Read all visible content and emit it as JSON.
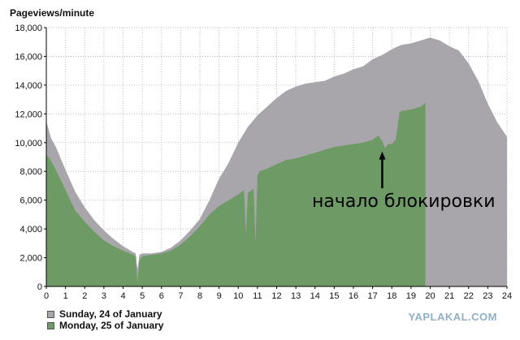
{
  "chart_data": {
    "type": "area",
    "ylabel": "Pageviews/minute",
    "xlim": [
      0,
      24
    ],
    "ylim": [
      0,
      18000
    ],
    "x_ticks": [
      "0",
      "1",
      "2",
      "3",
      "4",
      "5",
      "6",
      "7",
      "8",
      "9",
      "10",
      "11",
      "12",
      "13",
      "14",
      "15",
      "16",
      "17",
      "18",
      "19",
      "20",
      "21",
      "22",
      "23",
      "24"
    ],
    "y_ticks": [
      "0",
      "2,000",
      "4,000",
      "6,000",
      "8,000",
      "10,000",
      "12,000",
      "14,000",
      "16,000",
      "18,000"
    ],
    "grid": true,
    "legend_position": "bottom-left",
    "series": [
      {
        "name": "Sunday, 24 of January",
        "color": "#a8a5ab",
        "x": [
          0,
          0.25,
          0.5,
          1,
          1.5,
          2,
          2.5,
          3,
          3.5,
          4,
          4.5,
          4.65,
          4.75,
          4.85,
          5,
          5.5,
          6,
          6.5,
          7,
          7.5,
          8,
          8.5,
          9,
          9.5,
          10,
          10.5,
          11,
          11.5,
          12,
          12.5,
          13,
          13.5,
          14,
          14.5,
          15,
          15.5,
          16,
          16.5,
          17,
          17.5,
          18,
          18.5,
          19,
          19.5,
          20,
          20.5,
          21,
          21.5,
          22,
          22.5,
          23,
          23.5,
          24
        ],
        "values": [
          11500,
          10300,
          9700,
          8100,
          6600,
          5500,
          4600,
          3900,
          3300,
          2800,
          2400,
          2300,
          1200,
          2200,
          2300,
          2300,
          2400,
          2700,
          3200,
          3900,
          4700,
          6000,
          7500,
          8600,
          10000,
          11100,
          11900,
          12500,
          13100,
          13600,
          13900,
          14100,
          14200,
          14300,
          14600,
          14800,
          15100,
          15300,
          15800,
          16100,
          16500,
          16800,
          16900,
          17100,
          17300,
          17100,
          16700,
          16400,
          15500,
          14300,
          12700,
          11400,
          10400
        ]
      },
      {
        "name": "Monday, 25 of January",
        "color": "#6e9a66",
        "x": [
          0,
          0.25,
          0.5,
          1,
          1.5,
          2,
          2.5,
          3,
          3.5,
          4,
          4.5,
          4.65,
          4.75,
          4.85,
          5,
          5.5,
          6,
          6.5,
          7,
          7.5,
          8,
          8.5,
          9,
          9.5,
          10,
          10.2,
          10.3,
          10.4,
          10.5,
          10.7,
          10.8,
          10.9,
          11,
          11.1,
          11.5,
          12,
          12.5,
          13,
          13.5,
          14,
          14.5,
          15,
          15.5,
          16,
          16.5,
          17,
          17.3,
          17.5,
          17.65,
          17.8,
          18,
          18.2,
          18.4,
          18.5,
          19,
          19.5,
          19.7,
          19.75
        ],
        "values": [
          9200,
          8700,
          8100,
          6700,
          5300,
          4500,
          3800,
          3200,
          2800,
          2500,
          2200,
          2100,
          300,
          1800,
          2100,
          2200,
          2300,
          2500,
          2900,
          3500,
          4200,
          5000,
          5600,
          6000,
          6400,
          6600,
          6700,
          3600,
          6500,
          6700,
          6800,
          3000,
          7700,
          8000,
          8200,
          8500,
          8800,
          8900,
          9100,
          9300,
          9500,
          9700,
          9800,
          9900,
          10000,
          10200,
          10500,
          10100,
          9600,
          9900,
          9900,
          10200,
          12100,
          12200,
          12300,
          12500,
          12700,
          12800
        ]
      }
    ],
    "annotation": {
      "text": "начало блокировки",
      "x": 17.5,
      "y": 9500
    }
  },
  "watermark": "YAPLAKAL.COM"
}
